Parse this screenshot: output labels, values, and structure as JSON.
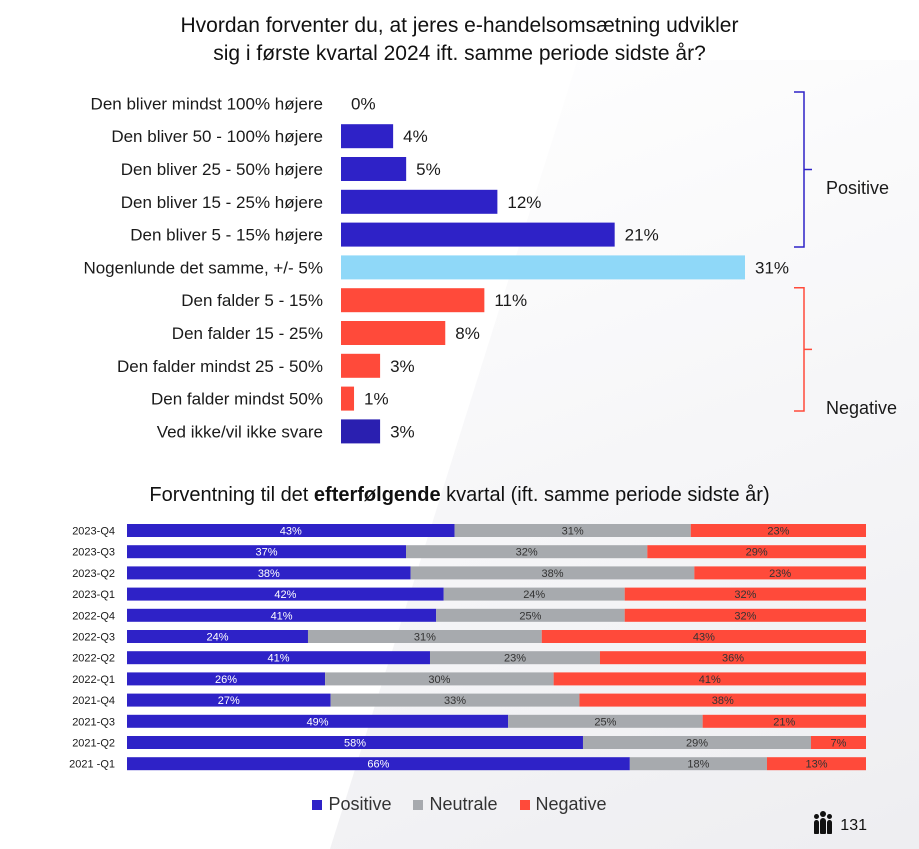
{
  "header": {
    "title_line1": "Hvordan forventer du, at jeres e-handelsomsætning udvikler",
    "title_line2": "sig i første kvartal 2024 ift. samme periode sidste år?"
  },
  "colors": {
    "positive": "#2e22c7",
    "neutral_same": "#8fd8f8",
    "negative": "#ff4a3a",
    "dont_know": "#2a1fb0",
    "neutral_grey": "#a7aaae"
  },
  "chart_data": [
    {
      "type": "bar",
      "orientation": "horizontal",
      "title": "Hvordan forventer du, at jeres e-handelsomsætning udvikler sig i første kvartal 2024 ift. samme periode sidste år?",
      "categories": [
        "Den bliver mindst 100% højere",
        "Den bliver 50 - 100% højere",
        "Den bliver 25 - 50% højere",
        "Den bliver 15 - 25% højere",
        "Den bliver 5 - 15% højere",
        "Nogenlunde det samme, +/- 5%",
        "Den falder 5 - 15%",
        "Den falder 15 - 25%",
        "Den falder mindst 25 - 50%",
        "Den falder mindst 50%",
        "Ved ikke/vil ikke svare"
      ],
      "values": [
        0,
        4,
        5,
        12,
        21,
        31,
        11,
        8,
        3,
        1,
        3
      ],
      "value_labels": [
        "0%",
        "4%",
        "5%",
        "12%",
        "21%",
        "31%",
        "11%",
        "8%",
        "3%",
        "1%",
        "3%"
      ],
      "groups": [
        {
          "label": "Positive",
          "members": [
            0,
            1,
            2,
            3,
            4
          ]
        },
        {
          "label": "Negative",
          "members": [
            6,
            7,
            8,
            9
          ]
        }
      ],
      "xlim": [
        0,
        31
      ]
    },
    {
      "type": "bar",
      "orientation": "horizontal",
      "stacked": true,
      "title_pre": "Forventning til det ",
      "title_bold": "efterfølgende",
      "title_post": " kvartal (ift. samme periode sidste år)",
      "categories": [
        "2023-Q4",
        "2023-Q3",
        "2023-Q2",
        "2023-Q1",
        "2022-Q4",
        "2022-Q3",
        "2022-Q2",
        "2022-Q1",
        "2021-Q4",
        "2021-Q3",
        "2021-Q2",
        "2021 -Q1"
      ],
      "series": [
        {
          "name": "Positive",
          "values": [
            43,
            37,
            38,
            42,
            41,
            24,
            41,
            26,
            27,
            49,
            58,
            66
          ]
        },
        {
          "name": "Neutrale",
          "values": [
            31,
            32,
            38,
            24,
            25,
            31,
            23,
            30,
            33,
            25,
            29,
            18
          ]
        },
        {
          "name": "Negative",
          "values": [
            23,
            29,
            23,
            32,
            32,
            43,
            36,
            41,
            38,
            21,
            7,
            13
          ]
        }
      ]
    }
  ],
  "legend": {
    "items": [
      {
        "label": "Positive",
        "color": "#2e22c7"
      },
      {
        "label": "Neutrale",
        "color": "#a7aaae"
      },
      {
        "label": "Negative",
        "color": "#ff4a3a"
      }
    ]
  },
  "footer": {
    "page_number": "131",
    "icon": "people-icon"
  }
}
